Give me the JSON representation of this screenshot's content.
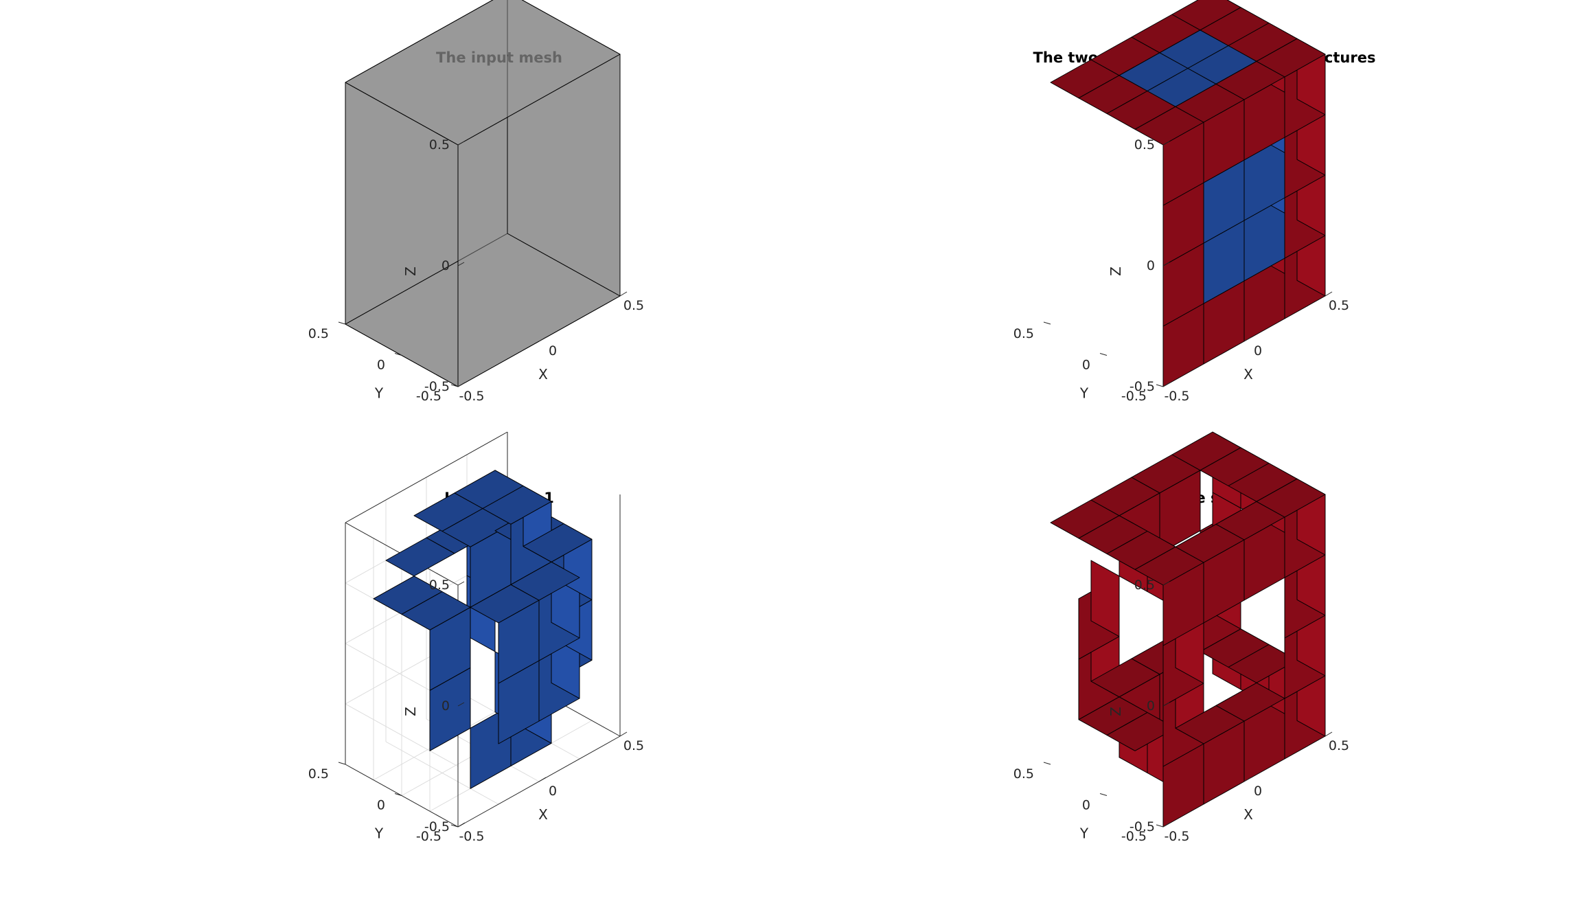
{
  "figure": {
    "panels": [
      {
        "id": "input-mesh",
        "title": "The input mesh",
        "style": "transparent-cube",
        "face_color": "#808080",
        "z_ticks": [
          "0.5",
          "0",
          "-0.5"
        ],
        "y_ticks": [
          "0.5",
          "0",
          "-0.5"
        ],
        "x_ticks": [
          "-0.5",
          "0",
          "0.5"
        ],
        "z_label": "Z",
        "y_label": "Y",
        "x_label": "X"
      },
      {
        "id": "complementary-lattices",
        "title": "The two complementary lattice structures",
        "style": "combined-lattice",
        "side1_color": "#2450a8",
        "side2_color": "#9b0d1c",
        "z_ticks": [
          "0.5",
          "0",
          "-0.5"
        ],
        "y_ticks": [
          "0.5",
          "0",
          "-0.5"
        ],
        "x_ticks": [
          "-0.5",
          "0",
          "0.5"
        ],
        "z_label": "Z",
        "y_label": "Y",
        "x_label": "X"
      },
      {
        "id": "lattice-side-1",
        "title": "Lattice side 1",
        "style": "side1-lattice",
        "side1_color": "#2450a8",
        "z_ticks": [
          "0.5",
          "0",
          "-0.5"
        ],
        "y_ticks": [
          "0.5",
          "0",
          "-0.5"
        ],
        "x_ticks": [
          "-0.5",
          "0",
          "0.5"
        ],
        "z_label": "Z",
        "y_label": "Y",
        "x_label": "X"
      },
      {
        "id": "lattice-side-2",
        "title": "Lattice side 2",
        "style": "side2-lattice",
        "side2_color": "#9b0d1c",
        "z_ticks": [
          "0.5",
          "0",
          "-0.5"
        ],
        "y_ticks": [
          "0.5",
          "0",
          "-0.5"
        ],
        "x_ticks": [
          "-0.5",
          "0",
          "0.5"
        ],
        "z_label": "Z",
        "y_label": "Y",
        "x_label": "X"
      }
    ]
  }
}
